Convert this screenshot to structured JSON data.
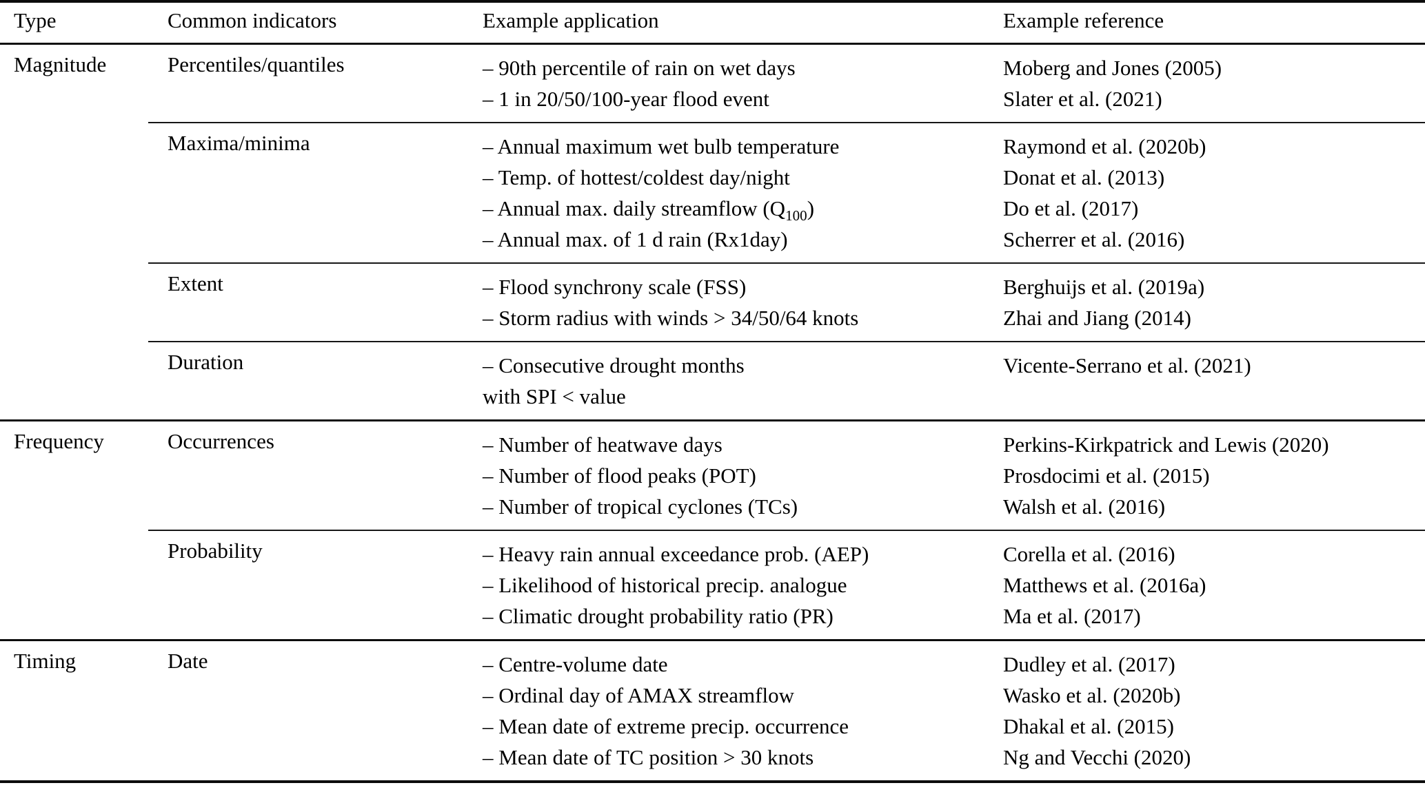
{
  "table": {
    "columns": [
      "Type",
      "Common indicators",
      "Example application",
      "Example reference"
    ],
    "groups": [
      {
        "type": "Magnitude",
        "rows": [
          {
            "indicator": "Percentiles/quantiles",
            "applications": [
              "– 90th percentile of rain on wet days",
              "– 1 in 20/50/100-year flood event"
            ],
            "references": [
              "Moberg and Jones (2005)",
              "Slater et al. (2021)"
            ]
          },
          {
            "indicator": "Maxima/minima",
            "applications": [
              "– Annual maximum wet bulb temperature",
              "– Temp. of hottest/coldest day/night",
              {
                "pre": "– Annual max. daily streamflow (Q",
                "sub": "100",
                "post": ")"
              },
              "– Annual max. of 1 d rain (Rx1day)"
            ],
            "references": [
              "Raymond et al. (2020b)",
              "Donat et al. (2013)",
              "Do et al. (2017)",
              "Scherrer et al. (2016)"
            ]
          },
          {
            "indicator": "Extent",
            "applications": [
              "– Flood synchrony scale (FSS)",
              "– Storm radius with winds > 34/50/64 knots"
            ],
            "references": [
              "Berghuijs et al. (2019a)",
              "Zhai and Jiang (2014)"
            ]
          },
          {
            "indicator": "Duration",
            "applications": [
              "– Consecutive drought months",
              "with SPI < value"
            ],
            "references": [
              "Vicente-Serrano et al. (2021)"
            ]
          }
        ]
      },
      {
        "type": "Frequency",
        "rows": [
          {
            "indicator": "Occurrences",
            "applications": [
              "– Number of heatwave days",
              "– Number of flood peaks (POT)",
              "– Number of tropical cyclones (TCs)"
            ],
            "references": [
              "Perkins-Kirkpatrick and Lewis (2020)",
              "Prosdocimi et al. (2015)",
              "Walsh et al. (2016)"
            ]
          },
          {
            "indicator": "Probability",
            "applications": [
              "– Heavy rain annual exceedance prob. (AEP)",
              "– Likelihood of historical precip. analogue",
              "– Climatic drought probability ratio (PR)"
            ],
            "references": [
              "Corella et al. (2016)",
              "Matthews et al. (2016a)",
              "Ma et al. (2017)"
            ]
          }
        ]
      },
      {
        "type": "Timing",
        "rows": [
          {
            "indicator": "Date",
            "applications": [
              "– Centre-volume date",
              "– Ordinal day of AMAX streamflow",
              "– Mean date of extreme precip. occurrence",
              "– Mean date of TC position > 30 knots"
            ],
            "references": [
              "Dudley et al. (2017)",
              "Wasko et al. (2020b)",
              "Dhakal et al. (2015)",
              "Ng and Vecchi (2020)"
            ]
          }
        ]
      }
    ]
  }
}
